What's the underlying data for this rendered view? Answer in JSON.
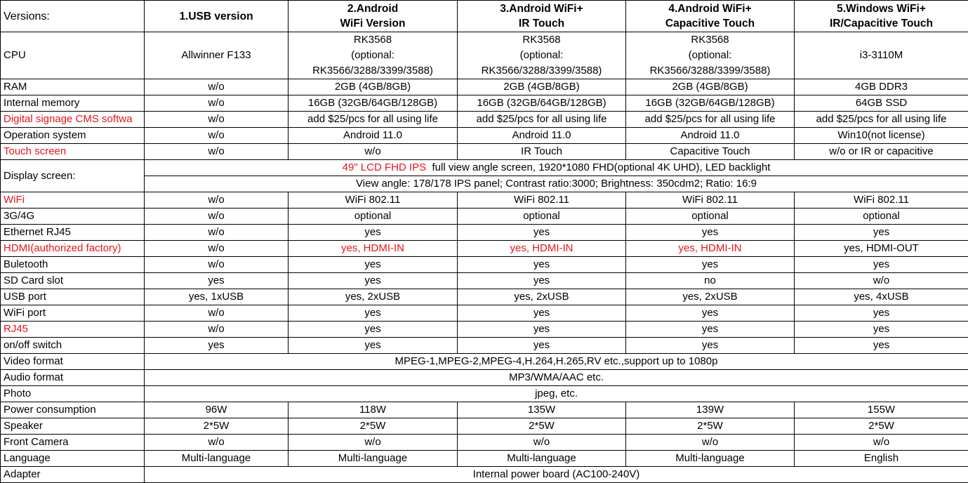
{
  "colors": {
    "highlight": "#e8141b",
    "border": "#000000"
  },
  "header": {
    "label": "Versions:",
    "columns": [
      [
        "1.USB version"
      ],
      [
        "2.Android",
        "WiFi Version"
      ],
      [
        "3.Android WiFi+",
        "IR Touch"
      ],
      [
        "4.Android WiFi+",
        "Capacitive Touch"
      ],
      [
        "5.Windows WiFi+",
        "IR/Capacitive Touch"
      ]
    ]
  },
  "rows": [
    {
      "label": "CPU",
      "cls": "cpu",
      "cells": [
        [
          "Allwinner F133"
        ],
        [
          "RK3568",
          "(optional:",
          "RK3566/3288/3399/3588)"
        ],
        [
          "RK3568",
          "(optional:",
          "RK3566/3288/3399/3588)"
        ],
        [
          "RK3568",
          "(optional:",
          "RK3566/3288/3399/3588)"
        ],
        [
          "i3-3110M"
        ]
      ]
    },
    {
      "label": "RAM",
      "cells": [
        "w/o",
        "2GB  (4GB/8GB)",
        "2GB  (4GB/8GB)",
        "2GB  (4GB/8GB)",
        "4GB DDR3"
      ]
    },
    {
      "label": "Internal memory",
      "cells": [
        "w/o",
        "16GB (32GB/64GB/128GB)",
        "16GB (32GB/64GB/128GB)",
        "16GB (32GB/64GB/128GB)",
        "64GB SSD"
      ]
    },
    {
      "label": "Digital signage CMS softwa",
      "highlight": true,
      "cells": [
        "w/o",
        "add $25/pcs for all using life",
        "add $25/pcs for all using life",
        "add $25/pcs for all using life",
        "add $25/pcs for all using life"
      ]
    },
    {
      "label": "Operation system",
      "cells": [
        "w/o",
        "Android 11.0",
        "Android 11.0",
        "Android 11.0",
        "Win10(not license)"
      ]
    },
    {
      "label": "Touch screen",
      "highlight": true,
      "cells": [
        "w/o",
        "w/o",
        "IR Touch",
        "Capacitive Touch",
        "w/o or IR or capacitive"
      ]
    },
    {
      "label": "Display screen:",
      "display": true,
      "line1_red": "49\" LCD FHD IPS",
      "line1": "  full view angle screen, 1920*1080 FHD(optional 4K UHD), LED backlight",
      "line2": "View angle: 178/178 IPS panel; Contrast ratio:3000; Brightness: 350cdm2; Ratio: 16:9"
    },
    {
      "label": "WiFi",
      "highlight": true,
      "cells": [
        "w/o",
        "WiFi 802.11",
        "WiFi 802.11",
        "WiFi 802.11",
        "WiFi 802.11"
      ]
    },
    {
      "label": "3G/4G",
      "cells": [
        "w/o",
        "optional",
        "optional",
        "optional",
        "optional"
      ]
    },
    {
      "label": "Ethernet RJ45",
      "cells": [
        "w/o",
        "yes",
        "yes",
        "yes",
        "yes"
      ]
    },
    {
      "label": "HDMI(authorized factory)",
      "highlight": true,
      "cells": [
        "w/o",
        "yes, HDMI-IN",
        "yes, HDMI-IN",
        "yes, HDMI-IN",
        "yes, HDMI-OUT"
      ],
      "red_cells": [
        1,
        2,
        3
      ]
    },
    {
      "label": "Buletooth",
      "cells": [
        "w/o",
        "yes",
        "yes",
        "yes",
        "yes"
      ]
    },
    {
      "label": "SD Card slot",
      "cells": [
        "yes",
        "yes",
        "yes",
        "no",
        "w/o"
      ]
    },
    {
      "label": "USB port",
      "cells": [
        "yes, 1xUSB",
        "yes, 2xUSB",
        "yes, 2xUSB",
        "yes, 2xUSB",
        "yes, 4xUSB"
      ]
    },
    {
      "label": "WiFi port",
      "cells": [
        "w/o",
        "yes",
        "yes",
        "yes",
        "yes"
      ]
    },
    {
      "label": "RJ45",
      "highlight": true,
      "cells": [
        "w/o",
        "yes",
        "yes",
        "yes",
        "yes"
      ]
    },
    {
      "label": "on/off switch",
      "cells": [
        "yes",
        "yes",
        "yes",
        "yes",
        "yes"
      ]
    },
    {
      "label": "Video format",
      "span": "MPEG-1,MPEG-2,MPEG-4,H.264,H.265,RV etc.,support up to 1080p"
    },
    {
      "label": "Audio format",
      "span": "MP3/WMA/AAC etc."
    },
    {
      "label": "Photo",
      "span": "jpeg, etc."
    },
    {
      "label": "Power consumption",
      "cells": [
        "96W",
        "118W",
        "135W",
        "139W",
        "155W"
      ]
    },
    {
      "label": "Speaker",
      "cells": [
        "2*5W",
        "2*5W",
        "2*5W",
        "2*5W",
        "2*5W"
      ]
    },
    {
      "label": "Front Camera",
      "cells": [
        "w/o",
        "w/o",
        "w/o",
        "w/o",
        "w/o"
      ]
    },
    {
      "label": "Language",
      "cells": [
        "Multi-language",
        "Multi-language",
        "Multi-language",
        "Multi-language",
        "English"
      ]
    },
    {
      "label": "Adapter",
      "span": "Internal power board (AC100-240V)"
    }
  ]
}
